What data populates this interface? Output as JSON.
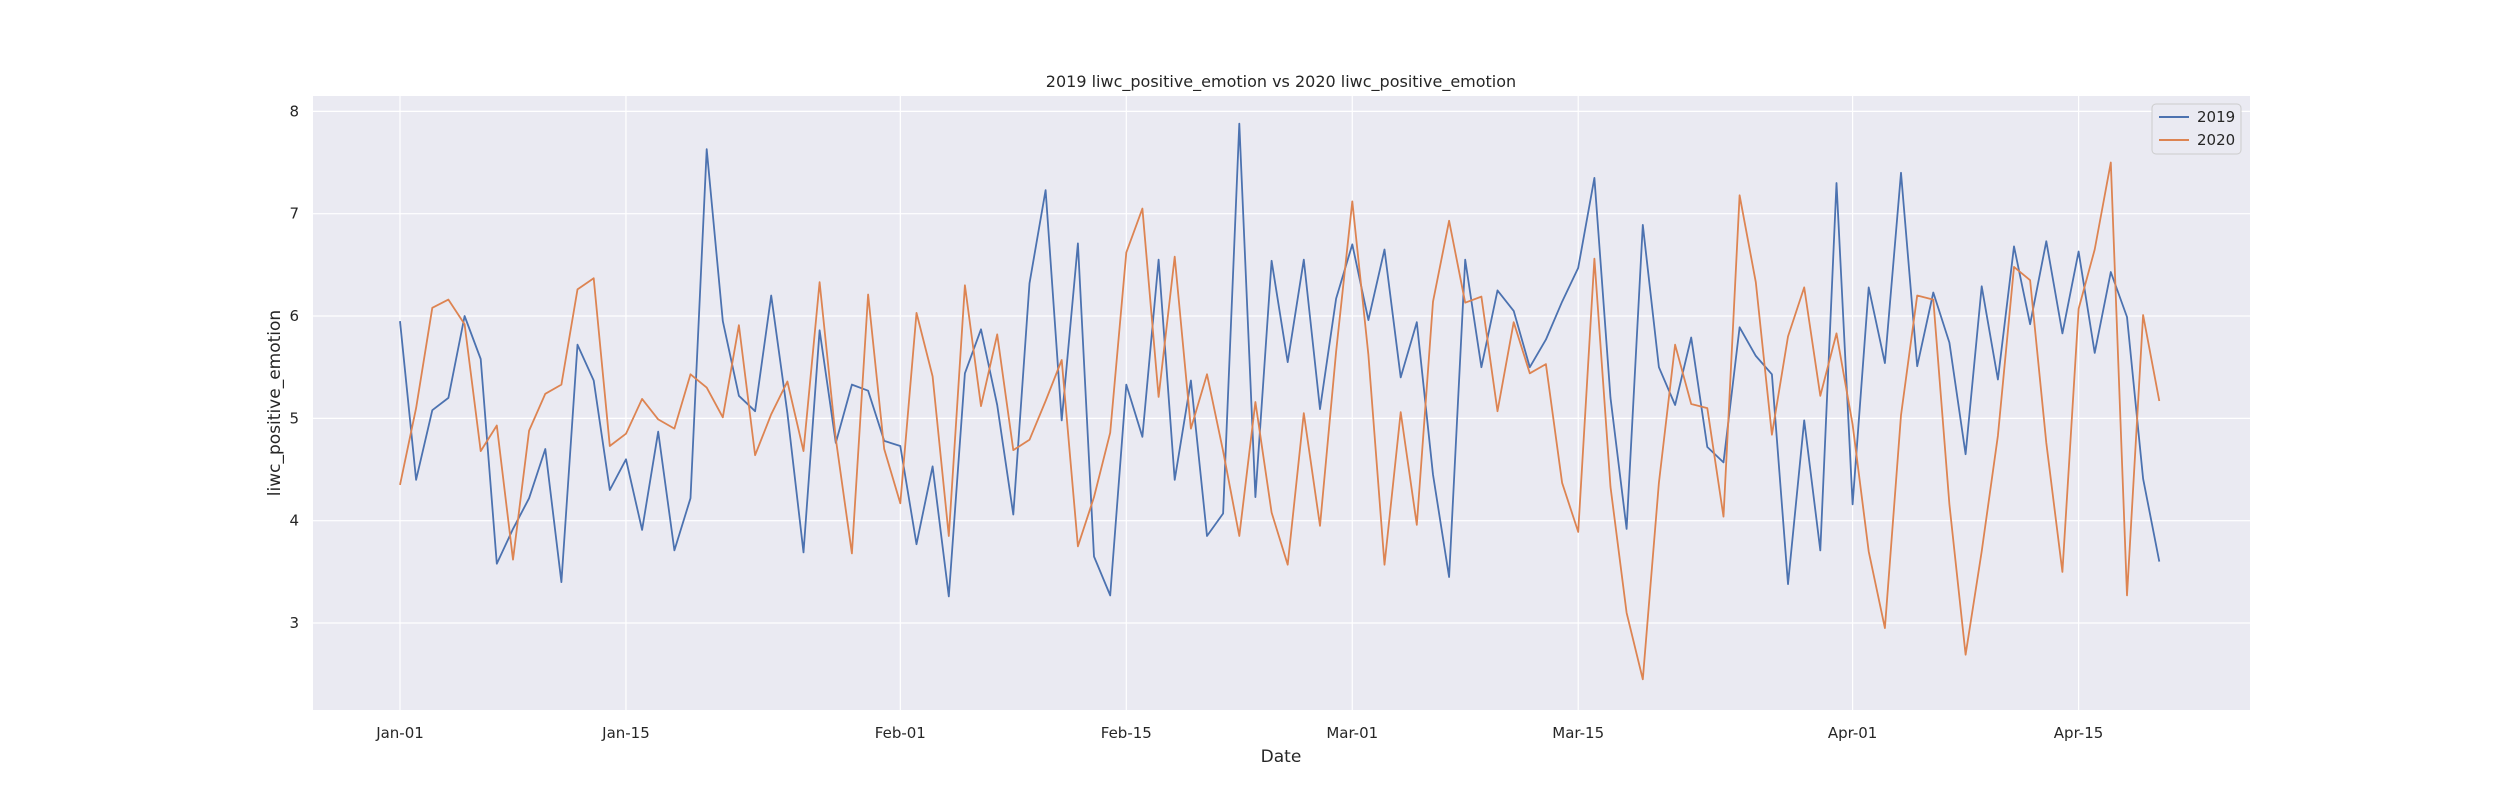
{
  "chart_data": {
    "type": "line",
    "title": "2019 liwc_positive_emotion vs 2020 liwc_positive_emotion",
    "xlabel": "Date",
    "ylabel": "liwc_positive_emotion",
    "x_start": "Jan-01",
    "x_end": "Apr-22",
    "x_ticks": [
      {
        "label": "Jan-01",
        "day": 0
      },
      {
        "label": "Jan-15",
        "day": 14
      },
      {
        "label": "Feb-01",
        "day": 31
      },
      {
        "label": "Feb-15",
        "day": 45
      },
      {
        "label": "Mar-01",
        "day": 59
      },
      {
        "label": "Mar-15",
        "day": 73
      },
      {
        "label": "Apr-01",
        "day": 90
      },
      {
        "label": "Apr-15",
        "day": 104
      }
    ],
    "ylim": [
      2.15,
      8.15
    ],
    "y_ticks": [
      3,
      4,
      5,
      6,
      7,
      8
    ],
    "grid": true,
    "legend_position": "top-right",
    "series": [
      {
        "name": "2019",
        "color": "#4c72b0",
        "values": [
          5.95,
          4.4,
          5.08,
          5.2,
          6.0,
          5.58,
          3.58,
          3.92,
          4.22,
          4.7,
          3.4,
          5.72,
          5.37,
          4.3,
          4.6,
          3.91,
          4.87,
          3.71,
          4.22,
          7.63,
          5.95,
          5.22,
          5.07,
          6.2,
          5.05,
          3.69,
          5.86,
          4.76,
          5.33,
          5.27,
          4.78,
          4.73,
          3.77,
          4.53,
          3.26,
          5.44,
          5.87,
          5.13,
          4.06,
          6.32,
          7.23,
          4.98,
          6.71,
          3.65,
          3.27,
          5.33,
          4.82,
          6.55,
          4.4,
          5.37,
          3.85,
          4.07,
          7.88,
          4.23,
          6.54,
          5.55,
          6.55,
          5.09,
          6.17,
          6.7,
          5.96,
          6.65,
          5.4,
          5.94,
          4.45,
          3.45,
          6.55,
          5.5,
          6.25,
          6.05,
          5.5,
          5.77,
          6.14,
          6.47,
          7.35,
          5.2,
          3.92,
          6.89,
          5.5,
          5.13,
          5.79,
          4.72,
          4.57,
          5.89,
          5.61,
          5.43,
          3.38,
          4.98,
          3.71,
          7.3,
          4.16,
          6.28,
          5.54,
          7.4,
          5.51,
          6.23,
          5.74,
          4.65,
          6.29,
          5.38,
          6.68,
          5.92,
          6.73,
          5.83,
          6.63,
          5.64,
          6.43,
          5.99,
          4.41,
          3.6
        ]
      },
      {
        "name": "2020",
        "color": "#dd8452",
        "values": [
          4.35,
          5.1,
          6.08,
          6.16,
          5.92,
          4.68,
          4.93,
          3.62,
          4.88,
          5.24,
          5.33,
          6.26,
          6.37,
          4.73,
          4.85,
          5.19,
          4.99,
          4.9,
          5.43,
          5.3,
          5.01,
          5.91,
          4.64,
          5.04,
          5.36,
          4.68,
          6.33,
          4.8,
          3.68,
          6.21,
          4.7,
          4.17,
          6.03,
          5.41,
          3.85,
          6.3,
          5.12,
          5.82,
          4.69,
          4.79,
          5.17,
          5.57,
          3.75,
          4.23,
          4.86,
          6.62,
          7.05,
          5.21,
          6.58,
          4.9,
          5.43,
          4.68,
          3.85,
          5.16,
          4.08,
          3.57,
          5.05,
          3.95,
          5.65,
          7.12,
          5.62,
          3.57,
          5.06,
          3.96,
          6.14,
          6.93,
          6.13,
          6.19,
          5.07,
          5.94,
          5.44,
          5.53,
          4.37,
          3.89,
          6.56,
          4.33,
          3.1,
          2.45,
          4.37,
          5.72,
          5.14,
          5.1,
          4.04,
          7.18,
          6.33,
          4.84,
          5.8,
          6.28,
          5.22,
          5.83,
          4.94,
          3.7,
          2.95,
          5.03,
          6.2,
          6.16,
          4.16,
          2.69,
          3.7,
          4.83,
          6.48,
          6.35,
          4.76,
          3.5,
          6.07,
          6.65,
          7.5,
          3.27,
          6.01,
          5.17
        ]
      }
    ]
  }
}
